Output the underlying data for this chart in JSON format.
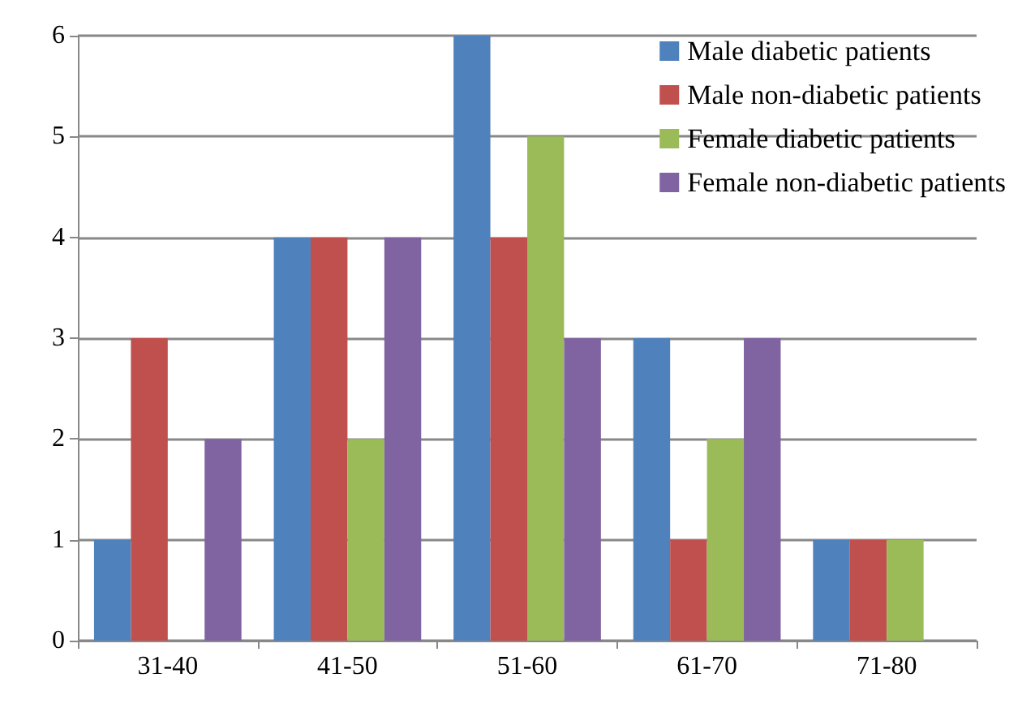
{
  "chart_data": {
    "type": "bar",
    "categories": [
      "31-40",
      "41-50",
      "51-60",
      "61-70",
      "71-80"
    ],
    "series": [
      {
        "name": "Male diabetic patients",
        "color": "#4f81bd",
        "values": [
          1,
          4,
          6,
          3,
          1
        ]
      },
      {
        "name": "Male non-diabetic patients",
        "color": "#c0504d",
        "values": [
          3,
          4,
          4,
          1,
          1
        ]
      },
      {
        "name": "Female diabetic patients",
        "color": "#9bbb59",
        "values": [
          0,
          2,
          5,
          2,
          1
        ]
      },
      {
        "name": "Female non-diabetic patients",
        "color": "#8064a2",
        "values": [
          2,
          4,
          3,
          3,
          0
        ]
      }
    ],
    "ylim": [
      0,
      6
    ],
    "yticks": [
      0,
      1,
      2,
      3,
      4,
      5,
      6
    ],
    "grid": "y",
    "legend": "top right"
  }
}
